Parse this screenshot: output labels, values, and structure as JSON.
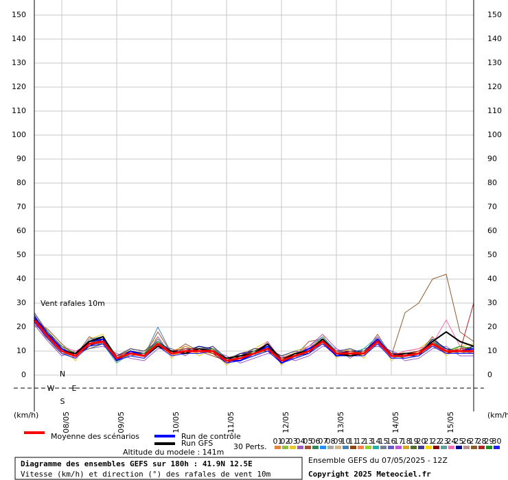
{
  "chart_data": {
    "type": "line",
    "annotation": "Vent rafales 10m",
    "y_unit_left": "(km/h)",
    "y_unit_right": "(km/h)",
    "compass": [
      "N",
      "W",
      "E",
      "S"
    ],
    "altitude": "Altitude du modele : 141m",
    "perturbations_label": "30 Perts.",
    "title": "Diagramme des ensembles GEFS sur 180h : 41.9N 12.5E",
    "subtitle": "Vitesse (km/h) et direction (°) des rafales de vent 10m",
    "run_info": "Ensemble GEFS du 07/05/2025 - 12Z",
    "copyright": "Copyright 2025 Meteociel.fr",
    "xlim": [
      0,
      192
    ],
    "xticks": [
      {
        "value": 12,
        "label": "08/05"
      },
      {
        "value": 36,
        "label": "09/05"
      },
      {
        "value": 60,
        "label": "10/05"
      },
      {
        "value": 84,
        "label": "11/05"
      },
      {
        "value": 108,
        "label": "12/05"
      },
      {
        "value": 132,
        "label": "13/05"
      },
      {
        "value": 156,
        "label": "14/05"
      },
      {
        "value": 180,
        "label": "15/05"
      }
    ],
    "ylim": [
      0,
      150
    ],
    "yticks": [
      0,
      10,
      20,
      30,
      40,
      50,
      60,
      70,
      80,
      90,
      100,
      110,
      120,
      130,
      140,
      150
    ],
    "grid": true,
    "x": [
      0,
      6,
      12,
      18,
      24,
      30,
      36,
      42,
      48,
      54,
      60,
      66,
      72,
      78,
      84,
      90,
      96,
      102,
      108,
      114,
      120,
      126,
      132,
      138,
      144,
      150,
      156,
      162,
      168,
      174,
      180,
      186,
      192
    ],
    "series": [
      {
        "name": "Moyenne des scénarios",
        "color": "#ff0000",
        "values": [
          23,
          16,
          10,
          8,
          13,
          14,
          7,
          9,
          8,
          13,
          9,
          10,
          10,
          10,
          6,
          7,
          9,
          11,
          6,
          8,
          10,
          14,
          9,
          9,
          9,
          14,
          8,
          8,
          9,
          13,
          10,
          10,
          10
        ]
      },
      {
        "name": "Run de contrôle",
        "color": "#0000ff",
        "values": [
          24,
          17,
          11,
          8,
          14,
          15,
          6,
          10,
          8,
          13,
          9,
          10,
          10,
          10,
          6,
          6,
          9,
          12,
          5,
          8,
          11,
          14,
          8,
          9,
          9,
          15,
          8,
          9,
          9,
          13,
          10,
          10,
          11
        ]
      },
      {
        "name": "Run GFS",
        "color": "#000000",
        "values": [
          23,
          16,
          10,
          9,
          14,
          16,
          7,
          9,
          8,
          12,
          10,
          9,
          11,
          10,
          7,
          8,
          9,
          13,
          6,
          9,
          10,
          15,
          9,
          8,
          9,
          14,
          8,
          9,
          9,
          14,
          18,
          14,
          12
        ]
      },
      {
        "name": "01",
        "color": "#e8823a",
        "values": [
          24,
          18,
          12,
          7,
          14,
          16,
          6,
          10,
          9,
          15,
          8,
          11,
          9,
          12,
          5,
          8,
          10,
          13,
          5,
          9,
          11,
          16,
          8,
          10,
          8,
          15,
          7,
          9,
          10,
          14,
          9,
          11,
          12
        ]
      },
      {
        "name": "02",
        "color": "#8fbf3f",
        "values": [
          22,
          15,
          9,
          9,
          12,
          13,
          8,
          8,
          7,
          12,
          10,
          9,
          11,
          9,
          7,
          6,
          8,
          10,
          7,
          7,
          9,
          13,
          10,
          8,
          10,
          13,
          9,
          7,
          8,
          12,
          11,
          9,
          9
        ]
      },
      {
        "name": "03",
        "color": "#e8c82a",
        "values": [
          25,
          17,
          11,
          6,
          15,
          17,
          5,
          11,
          10,
          16,
          7,
          12,
          8,
          11,
          4,
          9,
          11,
          14,
          4,
          10,
          12,
          17,
          7,
          11,
          7,
          16,
          6,
          10,
          11,
          15,
          8,
          12,
          13
        ]
      },
      {
        "name": "04",
        "color": "#9a5ac0",
        "values": [
          21,
          14,
          8,
          10,
          11,
          12,
          9,
          7,
          6,
          11,
          11,
          8,
          12,
          10,
          8,
          5,
          7,
          9,
          8,
          6,
          8,
          12,
          11,
          7,
          11,
          12,
          10,
          6,
          7,
          11,
          12,
          8,
          8
        ]
      },
      {
        "name": "05",
        "color": "#a0522d",
        "values": [
          23,
          19,
          13,
          8,
          16,
          13,
          6,
          9,
          8,
          18,
          9,
          13,
          10,
          8,
          6,
          7,
          9,
          12,
          6,
          8,
          14,
          15,
          9,
          9,
          9,
          17,
          8,
          8,
          9,
          16,
          10,
          10,
          11
        ]
      },
      {
        "name": "06",
        "color": "#2e8b57",
        "values": [
          24,
          16,
          10,
          9,
          12,
          15,
          7,
          10,
          9,
          13,
          10,
          10,
          9,
          11,
          7,
          8,
          10,
          11,
          7,
          9,
          10,
          13,
          8,
          10,
          10,
          14,
          9,
          9,
          10,
          13,
          9,
          11,
          10
        ]
      },
      {
        "name": "07",
        "color": "#1e90ff",
        "values": [
          22,
          17,
          9,
          7,
          14,
          14,
          8,
          8,
          7,
          12,
          8,
          9,
          11,
          10,
          5,
          6,
          8,
          10,
          5,
          7,
          9,
          14,
          10,
          8,
          8,
          13,
          7,
          7,
          8,
          12,
          11,
          9,
          9
        ]
      },
      {
        "name": "08",
        "color": "#a9a9a9",
        "values": [
          26,
          18,
          11,
          8,
          13,
          16,
          6,
          9,
          10,
          14,
          9,
          11,
          10,
          12,
          6,
          7,
          9,
          12,
          6,
          8,
          11,
          15,
          9,
          9,
          9,
          15,
          8,
          8,
          9,
          14,
          10,
          10,
          12
        ]
      },
      {
        "name": "09",
        "color": "#d2b48c",
        "values": [
          23,
          15,
          10,
          9,
          12,
          13,
          7,
          11,
          8,
          13,
          10,
          10,
          10,
          9,
          7,
          9,
          11,
          11,
          8,
          9,
          10,
          14,
          8,
          10,
          10,
          14,
          9,
          9,
          10,
          13,
          9,
          11,
          10
        ]
      },
      {
        "name": "10",
        "color": "#4682b4",
        "values": [
          22,
          16,
          10,
          8,
          14,
          15,
          6,
          9,
          8,
          20,
          9,
          10,
          12,
          10,
          6,
          7,
          9,
          13,
          6,
          8,
          12,
          16,
          9,
          9,
          9,
          15,
          8,
          8,
          9,
          13,
          10,
          10,
          10
        ]
      },
      {
        "name": "11",
        "color": "#8b4513",
        "values": [
          23,
          17,
          11,
          9,
          13,
          14,
          8,
          10,
          9,
          12,
          9,
          11,
          11,
          10,
          7,
          8,
          10,
          12,
          7,
          9,
          11,
          13,
          10,
          9,
          8,
          14,
          9,
          8,
          9,
          12,
          10,
          10,
          9
        ]
      },
      {
        "name": "12",
        "color": "#ff7f50",
        "values": [
          24,
          15,
          9,
          7,
          15,
          15,
          6,
          8,
          7,
          14,
          8,
          9,
          9,
          11,
          6,
          7,
          8,
          10,
          6,
          7,
          9,
          15,
          8,
          8,
          10,
          15,
          7,
          9,
          10,
          14,
          11,
          9,
          11
        ]
      },
      {
        "name": "13",
        "color": "#9acd32",
        "values": [
          22,
          18,
          12,
          10,
          12,
          16,
          7,
          11,
          10,
          13,
          10,
          12,
          10,
          9,
          5,
          6,
          11,
          11,
          8,
          10,
          12,
          14,
          9,
          11,
          9,
          13,
          8,
          7,
          8,
          13,
          9,
          12,
          10
        ]
      },
      {
        "name": "14",
        "color": "#20b2aa",
        "values": [
          25,
          16,
          10,
          8,
          13,
          13,
          5,
          9,
          8,
          15,
          9,
          10,
          12,
          10,
          7,
          8,
          9,
          12,
          5,
          8,
          10,
          16,
          10,
          9,
          11,
          16,
          9,
          8,
          9,
          15,
          10,
          10,
          12
        ]
      },
      {
        "name": "15",
        "color": "#708090",
        "values": [
          23,
          14,
          9,
          8,
          14,
          15,
          7,
          10,
          9,
          13,
          11,
          9,
          10,
          12,
          6,
          7,
          10,
          11,
          7,
          9,
          11,
          14,
          8,
          10,
          9,
          14,
          8,
          10,
          11,
          13,
          9,
          11,
          10
        ]
      },
      {
        "name": "16",
        "color": "#6a5acd",
        "values": [
          21,
          17,
          10,
          9,
          12,
          14,
          8,
          9,
          8,
          12,
          9,
          11,
          9,
          10,
          6,
          9,
          9,
          10,
          6,
          8,
          10,
          13,
          9,
          9,
          10,
          13,
          10,
          8,
          8,
          12,
          11,
          9,
          9
        ]
      },
      {
        "name": "17",
        "color": "#ba55d3",
        "values": [
          24,
          18,
          11,
          7,
          15,
          16,
          6,
          8,
          7,
          16,
          8,
          10,
          11,
          11,
          5,
          7,
          8,
          14,
          6,
          7,
          12,
          17,
          11,
          8,
          9,
          16,
          7,
          9,
          9,
          14,
          10,
          10,
          11
        ]
      },
      {
        "name": "18",
        "color": "#daa520",
        "values": [
          22,
          16,
          10,
          8,
          13,
          14,
          7,
          10,
          9,
          13,
          10,
          12,
          10,
          9,
          7,
          8,
          10,
          11,
          7,
          9,
          10,
          14,
          9,
          10,
          8,
          15,
          9,
          8,
          10,
          13,
          9,
          11,
          10
        ]
      },
      {
        "name": "19",
        "color": "#556b2f",
        "values": [
          23,
          15,
          12,
          9,
          11,
          13,
          6,
          9,
          8,
          12,
          9,
          9,
          12,
          10,
          6,
          6,
          9,
          12,
          6,
          8,
          11,
          13,
          8,
          9,
          10,
          14,
          8,
          9,
          9,
          12,
          10,
          10,
          9
        ]
      },
      {
        "name": "20",
        "color": "#483d8b",
        "values": [
          26,
          17,
          10,
          8,
          14,
          15,
          8,
          11,
          10,
          14,
          9,
          11,
          10,
          12,
          7,
          8,
          11,
          11,
          8,
          10,
          9,
          15,
          10,
          11,
          9,
          13,
          9,
          7,
          8,
          14,
          11,
          9,
          10
        ]
      },
      {
        "name": "21",
        "color": "#ffd700",
        "values": [
          22,
          16,
          9,
          7,
          13,
          14,
          7,
          9,
          8,
          13,
          8,
          10,
          9,
          10,
          6,
          7,
          9,
          10,
          6,
          8,
          10,
          14,
          9,
          9,
          9,
          14,
          8,
          8,
          9,
          13,
          10,
          10,
          10
        ]
      },
      {
        "name": "22",
        "color": "#8b0000",
        "values": [
          24,
          18,
          11,
          9,
          12,
          13,
          6,
          10,
          9,
          12,
          10,
          10,
          11,
          9,
          5,
          8,
          10,
          13,
          7,
          9,
          11,
          13,
          8,
          10,
          10,
          15,
          9,
          9,
          10,
          12,
          9,
          11,
          11
        ]
      },
      {
        "name": "23",
        "color": "#5f9ea0",
        "values": [
          23,
          15,
          10,
          8,
          15,
          16,
          8,
          8,
          7,
          15,
          9,
          11,
          10,
          11,
          7,
          7,
          8,
          11,
          5,
          7,
          10,
          16,
          10,
          8,
          8,
          13,
          7,
          8,
          9,
          14,
          10,
          9,
          10
        ]
      },
      {
        "name": "24",
        "color": "#ff69b4",
        "values": [
          21,
          17,
          12,
          10,
          13,
          14,
          7,
          9,
          8,
          13,
          9,
          9,
          10,
          10,
          6,
          6,
          9,
          12,
          6,
          9,
          12,
          14,
          9,
          9,
          9,
          14,
          8,
          10,
          11,
          13,
          23,
          12,
          9
        ]
      },
      {
        "name": "25",
        "color": "#00008b",
        "values": [
          25,
          16,
          10,
          8,
          12,
          15,
          6,
          10,
          9,
          14,
          10,
          10,
          12,
          11,
          6,
          9,
          10,
          10,
          7,
          8,
          9,
          15,
          9,
          10,
          10,
          15,
          9,
          8,
          8,
          15,
          11,
          10,
          12
        ]
      },
      {
        "name": "26",
        "color": "#bc8f8f",
        "values": [
          23,
          14,
          9,
          7,
          14,
          13,
          7,
          9,
          8,
          12,
          8,
          12,
          9,
          10,
          7,
          8,
          9,
          11,
          6,
          8,
          11,
          13,
          8,
          9,
          9,
          13,
          8,
          9,
          9,
          12,
          10,
          11,
          10
        ]
      },
      {
        "name": "27",
        "color": "#8b5a2b",
        "values": [
          22,
          17,
          11,
          9,
          13,
          14,
          6,
          8,
          9,
          13,
          9,
          10,
          10,
          10,
          6,
          7,
          10,
          12,
          6,
          9,
          10,
          14,
          9,
          9,
          10,
          14,
          8,
          26,
          30,
          40,
          42,
          18,
          14
        ]
      },
      {
        "name": "28",
        "color": "#b22222",
        "values": [
          24,
          16,
          10,
          8,
          13,
          15,
          8,
          10,
          8,
          13,
          10,
          11,
          11,
          9,
          7,
          8,
          9,
          11,
          7,
          8,
          10,
          14,
          10,
          10,
          9,
          15,
          9,
          9,
          10,
          13,
          9,
          10,
          30
        ]
      },
      {
        "name": "29",
        "color": "#228b22",
        "values": [
          23,
          18,
          12,
          9,
          14,
          14,
          7,
          9,
          9,
          14,
          9,
          10,
          10,
          11,
          6,
          7,
          10,
          12,
          6,
          9,
          11,
          15,
          9,
          9,
          9,
          14,
          8,
          8,
          9,
          14,
          10,
          12,
          11
        ]
      },
      {
        "name": "30",
        "color": "#1f1fff",
        "values": [
          22,
          15,
          9,
          7,
          12,
          13,
          6,
          8,
          7,
          12,
          8,
          9,
          9,
          10,
          5,
          6,
          8,
          10,
          5,
          7,
          9,
          13,
          8,
          8,
          8,
          13,
          7,
          7,
          8,
          12,
          9,
          9,
          9
        ]
      }
    ]
  }
}
